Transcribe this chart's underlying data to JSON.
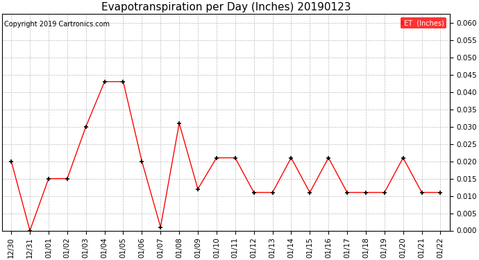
{
  "title": "Evapotranspiration per Day (Inches) 20190123",
  "copyright": "Copyright 2019 Cartronics.com",
  "legend_label": "ET  (Inches)",
  "x_labels": [
    "12/30",
    "12/31",
    "01/01",
    "01/02",
    "01/03",
    "01/04",
    "01/05",
    "01/06",
    "01/07",
    "01/08",
    "01/09",
    "01/10",
    "01/11",
    "01/12",
    "01/13",
    "01/14",
    "01/15",
    "01/16",
    "01/17",
    "01/18",
    "01/19",
    "01/20",
    "01/21",
    "01/22"
  ],
  "y_values": [
    0.02,
    0.0,
    0.015,
    0.015,
    0.03,
    0.043,
    0.043,
    0.02,
    0.001,
    0.031,
    0.012,
    0.021,
    0.021,
    0.011,
    0.011,
    0.021,
    0.011,
    0.021,
    0.011,
    0.011,
    0.011,
    0.021,
    0.011,
    0.011
  ],
  "ylim": [
    0.0,
    0.0625
  ],
  "yticks": [
    0.0,
    0.005,
    0.01,
    0.015,
    0.02,
    0.025,
    0.03,
    0.035,
    0.04,
    0.045,
    0.05,
    0.055,
    0.06
  ],
  "line_color": "red",
  "marker_color": "black",
  "background_color": "white",
  "grid_color": "#bbbbbb",
  "title_fontsize": 11,
  "tick_fontsize": 7.5,
  "copyright_fontsize": 7,
  "legend_bg": "red",
  "legend_text_color": "white",
  "legend_fontsize": 7
}
